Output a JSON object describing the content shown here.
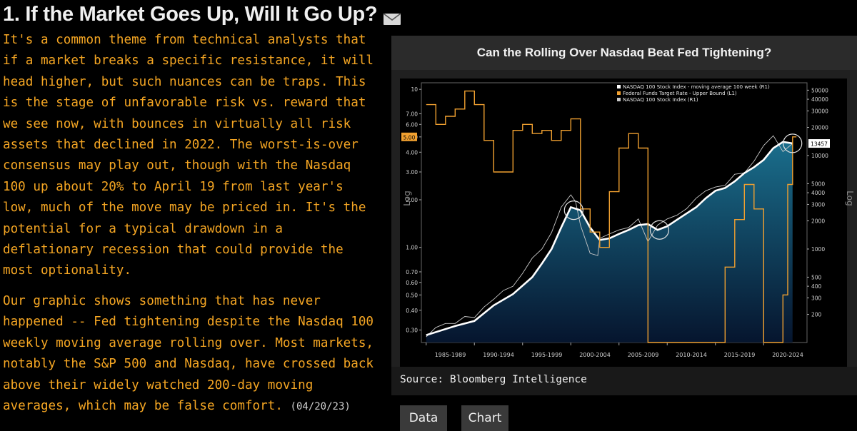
{
  "article": {
    "headline": "1. If the Market Goes Up, Will It Go Up?",
    "paragraph1": "It's a common theme from technical analysts that if a market breaks a specific resistance, it will head higher, but such nuances can be traps. This is the stage of unfavorable risk vs. reward that we see now, with bounces in virtually all risk assets that declined in 2022. The worst-is-over consensus may play out, though with the Nasdaq 100 up about 20% to April 19 from last year's low, much of the move may be priced in. It's the potential for a typical drawdown in a deflationary recession that could provide the most optionality.",
    "paragraph2": "Our graphic shows something that has never happened -- Fed tightening despite the Nasdaq 100 weekly moving average rolling over. Most markets, notably the S&P 500 and Nasdaq, have crossed back above their widely watched 200-day moving averages, which may be false comfort.",
    "date": "(04/20/23)"
  },
  "icons": {
    "share": "envelope-icon"
  },
  "colors": {
    "text_orange": "#f5a623",
    "ff_orange": "#f0a030",
    "ma_white": "#ffffff",
    "index_gray": "#c8c8c8",
    "fill_blue": "#1a6e8c"
  },
  "panel": {
    "title": "Can the Rolling Over Nasdaq Beat Fed Tightening?",
    "source": "Source: Bloomberg Intelligence",
    "buttons": {
      "data": "Data",
      "chart": "Chart"
    }
  },
  "chart_data": {
    "type": "line",
    "title": "Can the Rolling Over Nasdaq Beat Fed Tightening?",
    "x_labels": [
      "1985-1989",
      "1990-1994",
      "1995-1999",
      "2000-2004",
      "2005-2009",
      "2010-2014",
      "2015-2019",
      "2020-2024"
    ],
    "y_left": {
      "ticks": [
        "10",
        "7.00",
        "6.00",
        "5.00",
        "4.00",
        "3.00",
        "2.00",
        "1.00",
        "0.70",
        "0.60",
        "0.50",
        "0.40",
        "0.30"
      ],
      "scale": "log",
      "label": "Log"
    },
    "y_right": {
      "ticks": [
        "50000",
        "40000",
        "30000",
        "20000",
        "10000",
        "5000",
        "4000",
        "3000",
        "2000",
        "1000",
        "500",
        "400",
        "300",
        "200"
      ],
      "scale": "log",
      "label": "Log"
    },
    "last_value_label": "13457",
    "fed_marker": "5.00",
    "legend": [
      "NASDAQ 100 Stock Index - moving average 100 week (R1)",
      "Federal Funds Target Rate - Upper Bound (L1)",
      "NASDAQ 100 Stock Index (R1)"
    ],
    "series": [
      {
        "name": "NASDAQ 100 Stock Index - moving average 100 week (R1)",
        "points": [
          [
            1985,
            120
          ],
          [
            1988,
            150
          ],
          [
            1990,
            170
          ],
          [
            1992,
            250
          ],
          [
            1994,
            330
          ],
          [
            1996,
            500
          ],
          [
            1997,
            700
          ],
          [
            1998,
            1000
          ],
          [
            1999,
            1700
          ],
          [
            2000,
            2800
          ],
          [
            2001,
            2600
          ],
          [
            2002,
            1700
          ],
          [
            2003,
            1250
          ],
          [
            2004,
            1300
          ],
          [
            2005,
            1450
          ],
          [
            2006,
            1600
          ],
          [
            2007,
            1800
          ],
          [
            2008,
            1850
          ],
          [
            2009,
            1600
          ],
          [
            2010,
            1750
          ],
          [
            2011,
            2050
          ],
          [
            2012,
            2400
          ],
          [
            2013,
            2800
          ],
          [
            2014,
            3500
          ],
          [
            2015,
            4200
          ],
          [
            2016,
            4500
          ],
          [
            2017,
            5300
          ],
          [
            2018,
            6500
          ],
          [
            2019,
            7500
          ],
          [
            2020,
            9000
          ],
          [
            2021,
            12000
          ],
          [
            2022,
            14000
          ],
          [
            2023,
            13500
          ]
        ]
      },
      {
        "name": "NASDAQ 100 Stock Index (R1)",
        "points": [
          [
            1985,
            115
          ],
          [
            1986,
            145
          ],
          [
            1987,
            160
          ],
          [
            1988,
            160
          ],
          [
            1989,
            190
          ],
          [
            1990,
            185
          ],
          [
            1991,
            240
          ],
          [
            1992,
            290
          ],
          [
            1993,
            360
          ],
          [
            1994,
            400
          ],
          [
            1995,
            550
          ],
          [
            1996,
            800
          ],
          [
            1997,
            1000
          ],
          [
            1998,
            1500
          ],
          [
            1999,
            2800
          ],
          [
            2000,
            3800
          ],
          [
            2000.5,
            3200
          ],
          [
            2001,
            1800
          ],
          [
            2002,
            900
          ],
          [
            2002.8,
            850
          ],
          [
            2003,
            1300
          ],
          [
            2004,
            1450
          ],
          [
            2005,
            1600
          ],
          [
            2006,
            1700
          ],
          [
            2007,
            2100
          ],
          [
            2008,
            1200
          ],
          [
            2009,
            1800
          ],
          [
            2010,
            2100
          ],
          [
            2011,
            2300
          ],
          [
            2012,
            2700
          ],
          [
            2013,
            3500
          ],
          [
            2014,
            4200
          ],
          [
            2015,
            4600
          ],
          [
            2016,
            4800
          ],
          [
            2017,
            6300
          ],
          [
            2018,
            6500
          ],
          [
            2019,
            8700
          ],
          [
            2020,
            12800
          ],
          [
            2021,
            16300
          ],
          [
            2022,
            11000
          ],
          [
            2023,
            13457
          ]
        ]
      },
      {
        "name": "Federal Funds Target Rate - Upper Bound (L1)",
        "points": [
          [
            1985,
            8.0
          ],
          [
            1986,
            6.0
          ],
          [
            1987,
            6.75
          ],
          [
            1988,
            7.5
          ],
          [
            1989,
            9.75
          ],
          [
            1990,
            8.0
          ],
          [
            1991,
            4.75
          ],
          [
            1992,
            3.0
          ],
          [
            1993,
            3.0
          ],
          [
            1994,
            5.5
          ],
          [
            1995,
            6.0
          ],
          [
            1996,
            5.25
          ],
          [
            1997,
            5.5
          ],
          [
            1998,
            4.75
          ],
          [
            1999,
            5.5
          ],
          [
            2000,
            6.5
          ],
          [
            2001,
            1.75
          ],
          [
            2002,
            1.25
          ],
          [
            2003,
            1.0
          ],
          [
            2004,
            2.25
          ],
          [
            2005,
            4.25
          ],
          [
            2006,
            5.25
          ],
          [
            2007,
            4.25
          ],
          [
            2008,
            0.25
          ],
          [
            2009,
            0.25
          ],
          [
            2015,
            0.25
          ],
          [
            2016,
            0.75
          ],
          [
            2017,
            1.5
          ],
          [
            2018,
            2.5
          ],
          [
            2019,
            1.75
          ],
          [
            2020,
            0.25
          ],
          [
            2022,
            0.5
          ],
          [
            2022.5,
            2.5
          ],
          [
            2023,
            5.0
          ]
        ]
      }
    ],
    "annotations": [
      "circle-2000",
      "circle-2009",
      "circle-2023"
    ]
  }
}
